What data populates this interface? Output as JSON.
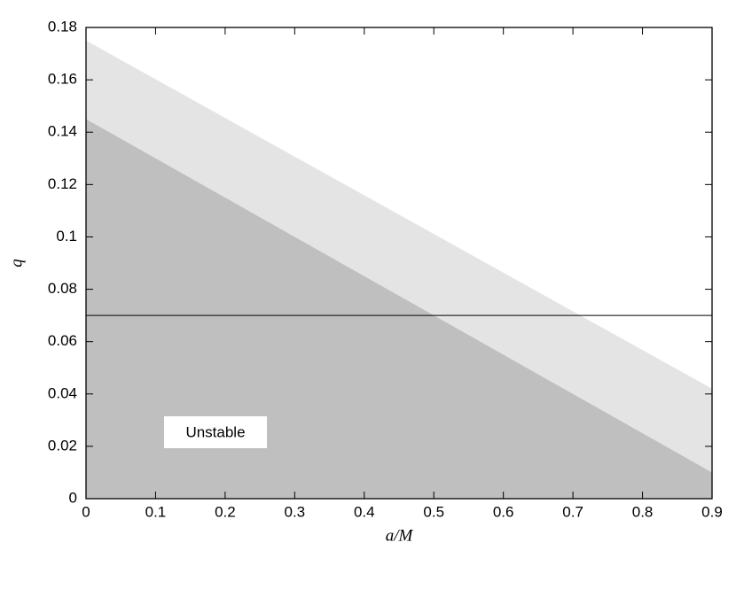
{
  "chart_data": {
    "type": "area",
    "xlabel": "a/M",
    "ylabel": "q",
    "annotation": "Unstable",
    "x": [
      0,
      0.9
    ],
    "series": [
      {
        "color": "#e4e4e4",
        "fill": true,
        "values": [
          0.175,
          0.042
        ]
      },
      {
        "color": "#bfbfbf",
        "fill": true,
        "values": [
          0.145,
          0.01
        ]
      },
      {
        "color": "#000000",
        "fill": false,
        "values": [
          0.07,
          0.07
        ]
      }
    ],
    "xlim": [
      0,
      0.9
    ],
    "xticks": [
      0,
      0.1,
      0.2,
      0.3,
      0.4,
      0.5,
      0.6,
      0.7,
      0.8,
      0.9
    ],
    "ylim": [
      0,
      0.18
    ],
    "yticks": [
      0,
      0.02,
      0.04,
      0.06,
      0.08,
      0.1,
      0.12,
      0.14,
      0.16,
      0.18
    ],
    "grid": false
  }
}
